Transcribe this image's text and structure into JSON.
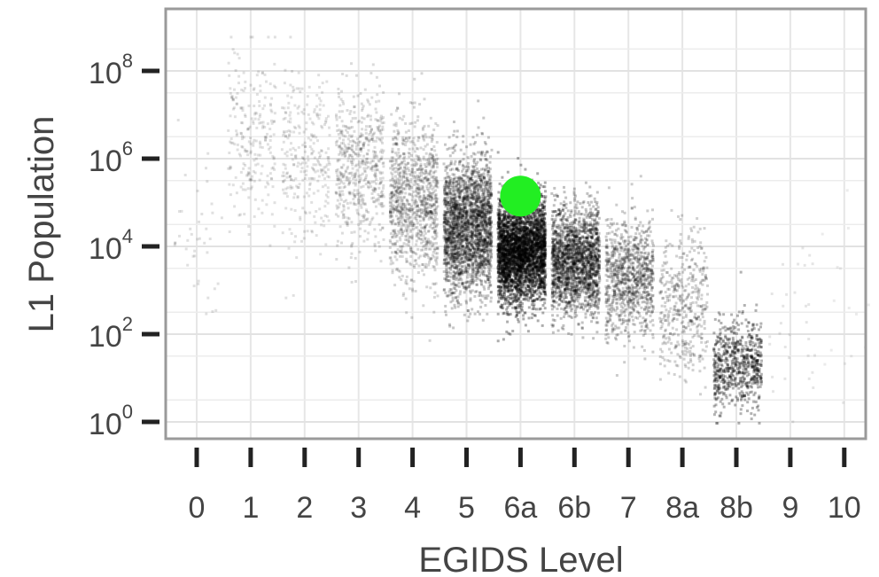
{
  "chart_data": {
    "type": "scatter",
    "xlabel": "EGIDS Level",
    "ylabel": "L1 Population",
    "x_categories": [
      "0",
      "1",
      "2",
      "3",
      "4",
      "5",
      "6a",
      "6b",
      "7",
      "8a",
      "8b",
      "9",
      "10"
    ],
    "y_scale": "log10",
    "y_ticks": [
      {
        "value": 1,
        "base": "10",
        "exp": "0"
      },
      {
        "value": 100,
        "base": "10",
        "exp": "2"
      },
      {
        "value": 10000,
        "base": "10",
        "exp": "4"
      },
      {
        "value": 1000000,
        "base": "10",
        "exp": "6"
      },
      {
        "value": 100000000,
        "base": "10",
        "exp": "8"
      }
    ],
    "ylim": [
      0.1,
      3000000000
    ],
    "grid": true,
    "point_color": "#000000",
    "highlight_color": "#22ee22",
    "highlight": {
      "x": "6a",
      "y": 140000
    },
    "series": [
      {
        "x": "0",
        "count": 40,
        "median": 30000,
        "spread": 1.2,
        "alpha": 0.12
      },
      {
        "x": "1",
        "count": 230,
        "median": 3000000,
        "spread": 1.0,
        "alpha": 0.12
      },
      {
        "x": "2",
        "count": 280,
        "median": 1200000,
        "spread": 0.95,
        "alpha": 0.12
      },
      {
        "x": "3",
        "count": 560,
        "median": 600000,
        "spread": 0.9,
        "alpha": 0.14
      },
      {
        "x": "4",
        "count": 1050,
        "median": 120000,
        "spread": 0.85,
        "alpha": 0.16
      },
      {
        "x": "5",
        "count": 2400,
        "median": 30000,
        "spread": 0.75,
        "alpha": 0.22
      },
      {
        "x": "6a",
        "count": 3200,
        "median": 8000,
        "spread": 0.6,
        "alpha": 0.32
      },
      {
        "x": "6b",
        "count": 1900,
        "median": 5000,
        "spread": 0.6,
        "alpha": 0.24
      },
      {
        "x": "7",
        "count": 950,
        "median": 2000,
        "spread": 0.65,
        "alpha": 0.2
      },
      {
        "x": "8a",
        "count": 430,
        "median": 500,
        "spread": 0.75,
        "alpha": 0.18
      },
      {
        "x": "8b",
        "count": 650,
        "median": 20,
        "spread": 0.5,
        "alpha": 0.3
      },
      {
        "x": "9",
        "count": 30,
        "median": 200,
        "spread": 1.0,
        "alpha": 0.1
      },
      {
        "x": "10",
        "count": 15,
        "median": 300,
        "spread": 1.1,
        "alpha": 0.08
      }
    ]
  }
}
